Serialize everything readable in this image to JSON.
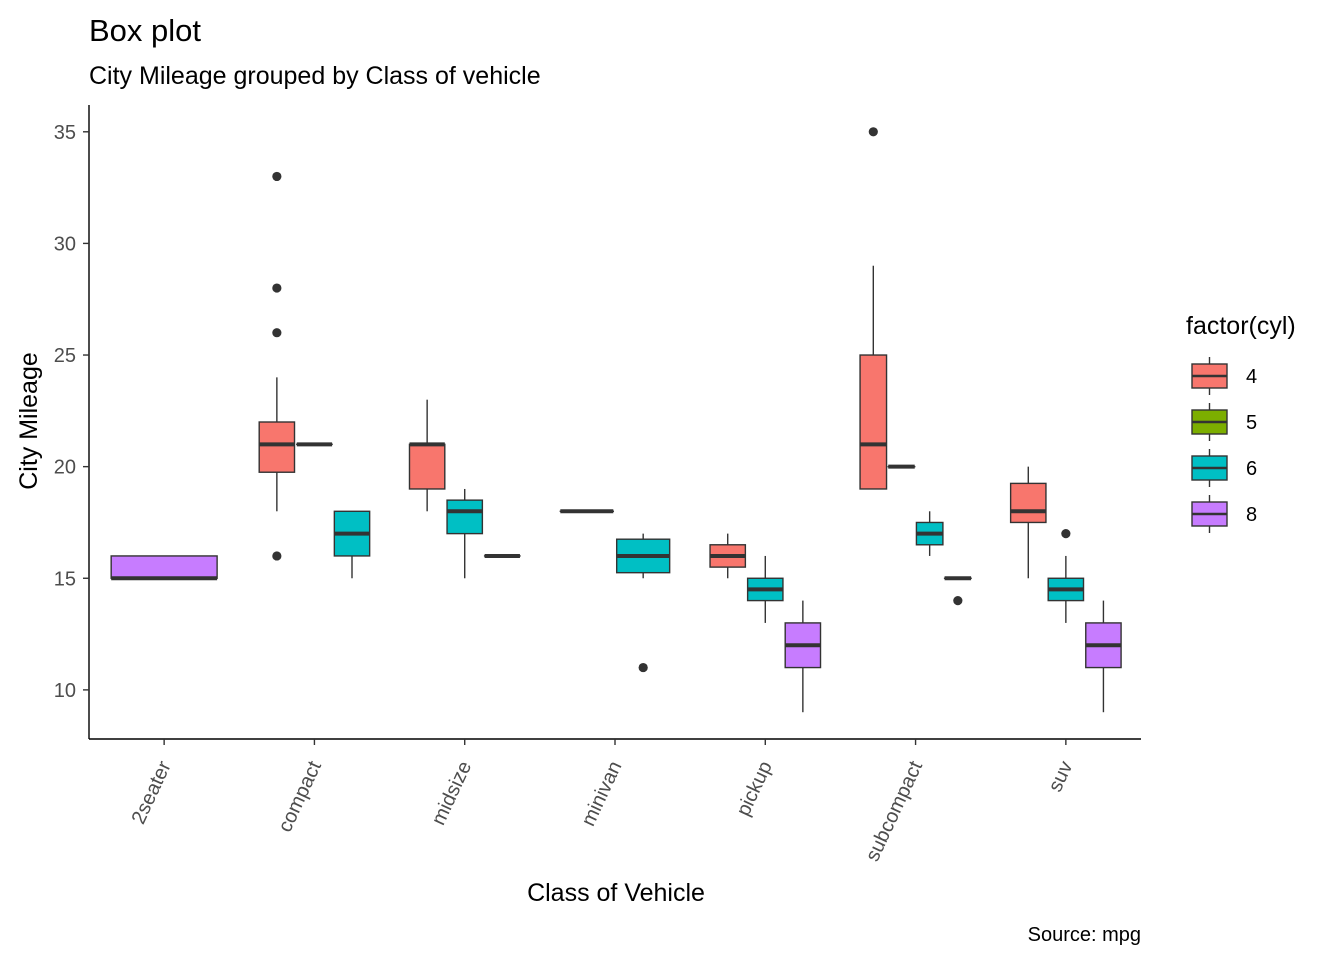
{
  "chart_data": {
    "type": "boxplot",
    "title": "Box plot",
    "subtitle": "City Mileage grouped by Class of vehicle",
    "xlabel": "Class of Vehicle",
    "ylabel": "City Mileage",
    "caption": "Source: mpg",
    "categories": [
      "2seater",
      "compact",
      "midsize",
      "minivan",
      "pickup",
      "subcompact",
      "suv"
    ],
    "y_ticks": [
      "10",
      "15",
      "20",
      "25",
      "30",
      "35"
    ],
    "ylim": [
      7.8,
      36.2
    ],
    "legend": {
      "title": "factor(cyl)",
      "placement": "right",
      "entries": [
        {
          "label": "4",
          "color": "#F8766D"
        },
        {
          "label": "5",
          "color": "#7CAE00"
        },
        {
          "label": "6",
          "color": "#00BFC4"
        },
        {
          "label": "8",
          "color": "#C77CFF"
        }
      ]
    },
    "groups": [
      {
        "category": "2seater",
        "boxes": [
          {
            "cyl": "8",
            "min": 15,
            "q1": 15,
            "median": 15,
            "q3": 16,
            "max": 16,
            "outliers": []
          }
        ]
      },
      {
        "category": "compact",
        "boxes": [
          {
            "cyl": "4",
            "min": 18,
            "q1": 19.75,
            "median": 21,
            "q3": 22,
            "max": 24,
            "outliers": [
              16,
              26,
              28,
              33
            ]
          },
          {
            "cyl": "5",
            "min": 21,
            "q1": 21,
            "median": 21,
            "q3": 21,
            "max": 21,
            "outliers": []
          },
          {
            "cyl": "6",
            "min": 15,
            "q1": 16,
            "median": 17,
            "q3": 18,
            "max": 18,
            "outliers": []
          }
        ]
      },
      {
        "category": "midsize",
        "boxes": [
          {
            "cyl": "4",
            "min": 18,
            "q1": 19,
            "median": 21,
            "q3": 21,
            "max": 23,
            "outliers": []
          },
          {
            "cyl": "6",
            "min": 15,
            "q1": 17,
            "median": 18,
            "q3": 18.5,
            "max": 19,
            "outliers": []
          },
          {
            "cyl": "8",
            "min": 16,
            "q1": 16,
            "median": 16,
            "q3": 16,
            "max": 16,
            "outliers": []
          }
        ]
      },
      {
        "category": "minivan",
        "boxes": [
          {
            "cyl": "4",
            "min": 18,
            "q1": 18,
            "median": 18,
            "q3": 18,
            "max": 18,
            "outliers": []
          },
          {
            "cyl": "6",
            "min": 15,
            "q1": 15.25,
            "median": 16,
            "q3": 16.75,
            "max": 17,
            "outliers": [
              11
            ]
          }
        ]
      },
      {
        "category": "pickup",
        "boxes": [
          {
            "cyl": "4",
            "min": 15,
            "q1": 15.5,
            "median": 16,
            "q3": 16.5,
            "max": 17,
            "outliers": []
          },
          {
            "cyl": "6",
            "min": 13,
            "q1": 14,
            "median": 14.5,
            "q3": 15,
            "max": 16,
            "outliers": []
          },
          {
            "cyl": "8",
            "min": 9,
            "q1": 11,
            "median": 12,
            "q3": 13,
            "max": 14,
            "outliers": []
          }
        ]
      },
      {
        "category": "subcompact",
        "boxes": [
          {
            "cyl": "4",
            "min": 19,
            "q1": 19,
            "median": 21,
            "q3": 25,
            "max": 29,
            "outliers": [
              35
            ]
          },
          {
            "cyl": "5",
            "min": 20,
            "q1": 20,
            "median": 20,
            "q3": 20,
            "max": 20,
            "outliers": []
          },
          {
            "cyl": "6",
            "min": 16,
            "q1": 16.5,
            "median": 17,
            "q3": 17.5,
            "max": 18,
            "outliers": []
          },
          {
            "cyl": "8",
            "min": 15,
            "q1": 15,
            "median": 15,
            "q3": 15,
            "max": 15,
            "outliers": [
              14
            ]
          }
        ]
      },
      {
        "category": "suv",
        "boxes": [
          {
            "cyl": "4",
            "min": 15,
            "q1": 17.5,
            "median": 18,
            "q3": 19.25,
            "max": 20,
            "outliers": []
          },
          {
            "cyl": "6",
            "min": 13,
            "q1": 14,
            "median": 14.5,
            "q3": 15,
            "max": 16,
            "outliers": [
              17
            ]
          },
          {
            "cyl": "8",
            "min": 9,
            "q1": 11,
            "median": 12,
            "q3": 13,
            "max": 14,
            "outliers": []
          }
        ]
      }
    ]
  }
}
